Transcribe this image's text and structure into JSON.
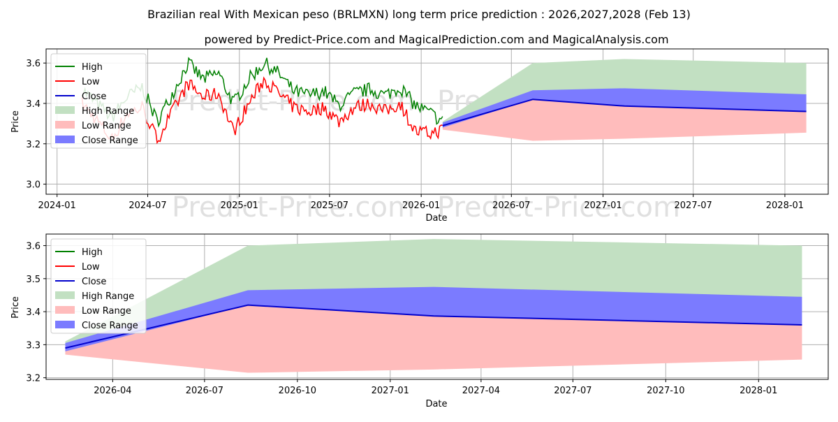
{
  "title_line1": "Brazilian real With Mexican peso (BRLMXN) long term price prediction : 2026,2027,2028 (Feb 13)",
  "title_line2": "powered by Predict-Price.com and MagicalPrediction.com and MagicalAnalysis.com",
  "watermark": "Predict-Price.com",
  "colors": {
    "high": "#008000",
    "low": "#ff0000",
    "close": "#0000cc",
    "high_range": "#c2e0c2",
    "low_range": "#ffbcbc",
    "close_range": "#7b7bff"
  },
  "legend": [
    "High",
    "Low",
    "Close",
    "High Range",
    "Low Range",
    "Close Range"
  ],
  "chart_data": [
    {
      "type": "line",
      "xlabel": "Date",
      "ylabel": "Price",
      "xlim": [
        "2023-12-10",
        "2028-03-28"
      ],
      "ylim": [
        2.95,
        3.67
      ],
      "x_ticks": [
        "2024-01",
        "2024-07",
        "2025-01",
        "2025-07",
        "2026-01",
        "2026-07",
        "2027-01",
        "2027-07",
        "2028-01"
      ],
      "y_ticks": [
        3.0,
        3.2,
        3.4,
        3.6
      ],
      "historical": {
        "start": "2024-02-20",
        "end": "2026-02-13",
        "note": "estimated weekly-ish samples",
        "dates": [
          "2024-02-20",
          "2024-03-20",
          "2024-04-20",
          "2024-05-20",
          "2024-06-20",
          "2024-07-20",
          "2024-08-20",
          "2024-09-20",
          "2024-10-20",
          "2024-11-20",
          "2024-12-20",
          "2025-01-20",
          "2025-02-20",
          "2025-03-20",
          "2025-04-20",
          "2025-05-20",
          "2025-06-20",
          "2025-07-20",
          "2025-08-20",
          "2025-09-20",
          "2025-10-20",
          "2025-11-20",
          "2025-12-20",
          "2026-01-20",
          "2026-02-13"
        ],
        "high": [
          3.47,
          3.4,
          3.33,
          3.43,
          3.48,
          3.31,
          3.45,
          3.6,
          3.52,
          3.55,
          3.4,
          3.52,
          3.6,
          3.55,
          3.46,
          3.44,
          3.46,
          3.39,
          3.45,
          3.47,
          3.44,
          3.48,
          3.39,
          3.35,
          3.31
        ],
        "low": [
          3.4,
          3.32,
          3.22,
          3.35,
          3.38,
          3.22,
          3.36,
          3.5,
          3.43,
          3.45,
          3.26,
          3.4,
          3.52,
          3.45,
          3.38,
          3.36,
          3.38,
          3.31,
          3.38,
          3.4,
          3.36,
          3.4,
          3.26,
          3.25,
          3.27
        ],
        "close": [
          3.44,
          3.36,
          3.27,
          3.39,
          3.43,
          3.26,
          3.41,
          3.55,
          3.48,
          3.5,
          3.33,
          3.46,
          3.56,
          3.5,
          3.42,
          3.4,
          3.42,
          3.35,
          3.42,
          3.44,
          3.4,
          3.44,
          3.32,
          3.3,
          3.29
        ]
      },
      "forecast": {
        "dates": [
          "2026-02-13",
          "2026-08-13",
          "2027-02-13",
          "2028-02-13"
        ],
        "close": [
          3.29,
          3.42,
          3.387,
          3.36
        ],
        "high_range": [
          [
            3.29,
            3.31
          ],
          [
            3.46,
            3.6
          ],
          [
            3.47,
            3.62
          ],
          [
            3.44,
            3.6
          ]
        ],
        "low_range": [
          [
            3.27,
            3.29
          ],
          [
            3.215,
            3.42
          ],
          [
            3.225,
            3.387
          ],
          [
            3.255,
            3.36
          ]
        ],
        "close_range": [
          [
            3.28,
            3.305
          ],
          [
            3.42,
            3.465
          ],
          [
            3.387,
            3.475
          ],
          [
            3.36,
            3.445
          ]
        ]
      }
    },
    {
      "type": "area",
      "xlabel": "Date",
      "ylabel": "Price",
      "xlim": [
        "2026-01-25",
        "2028-03-10"
      ],
      "ylim": [
        3.195,
        3.635
      ],
      "x_ticks": [
        "2026-04",
        "2026-07",
        "2026-10",
        "2027-01",
        "2027-04",
        "2027-07",
        "2027-10",
        "2028-01"
      ],
      "y_ticks": [
        3.2,
        3.3,
        3.4,
        3.5,
        3.6
      ],
      "forecast_ref": "same as chart 1 forecast"
    }
  ]
}
